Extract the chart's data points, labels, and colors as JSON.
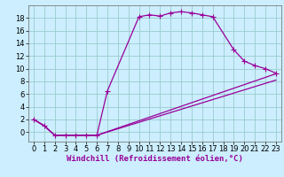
{
  "xlabel": "Windchill (Refroidissement éolien,°C)",
  "bg_color": "#cceeff",
  "grid_color": "#99cccc",
  "line_color": "#990099",
  "xlim": [
    -0.5,
    23.5
  ],
  "ylim": [
    -1.5,
    20
  ],
  "xticks": [
    0,
    1,
    2,
    3,
    4,
    5,
    6,
    7,
    8,
    9,
    10,
    11,
    12,
    13,
    14,
    15,
    16,
    17,
    18,
    19,
    20,
    21,
    22,
    23
  ],
  "yticks": [
    0,
    2,
    4,
    6,
    8,
    10,
    12,
    14,
    16,
    18
  ],
  "line1_x": [
    0,
    1,
    2,
    3,
    4,
    5,
    6,
    7,
    10,
    11,
    12,
    13,
    14,
    15,
    16,
    17,
    19,
    20,
    21,
    22,
    23
  ],
  "line1_y": [
    2,
    1,
    -0.5,
    -0.5,
    -0.5,
    -0.5,
    -0.5,
    6.5,
    18.2,
    18.5,
    18.3,
    18.8,
    19.0,
    18.8,
    18.5,
    18.2,
    13.0,
    11.2,
    10.5,
    10.0,
    9.3
  ],
  "line2_x": [
    0,
    1,
    2,
    3,
    4,
    5,
    6,
    23
  ],
  "line2_y": [
    2,
    1,
    -0.5,
    -0.5,
    -0.5,
    -0.5,
    -0.5,
    9.2
  ],
  "line3_x": [
    0,
    1,
    2,
    3,
    4,
    5,
    6,
    23
  ],
  "line3_y": [
    2,
    1,
    -0.5,
    -0.5,
    -0.5,
    -0.5,
    -0.5,
    8.2
  ],
  "tick_fontsize": 6,
  "xlabel_fontsize": 6.5
}
